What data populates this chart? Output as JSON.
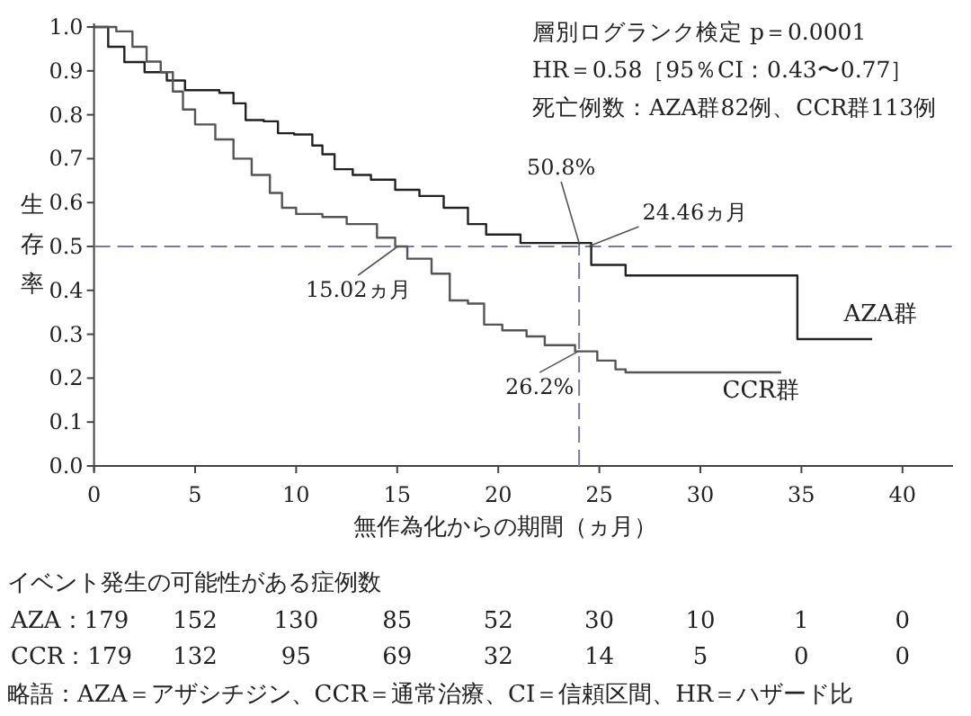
{
  "chart_data": {
    "type": "step",
    "xlabel": "無作為化からの期間（ヵ月）",
    "ylabel": "生存率",
    "xlim": [
      0,
      42.5
    ],
    "ylim": [
      0,
      1
    ],
    "xticks": [
      0,
      5,
      10,
      15,
      20,
      25,
      30,
      35,
      40
    ],
    "yticks": [
      {
        "value": 0,
        "label": "0.0"
      },
      0.1,
      0.2,
      0.3,
      0.4,
      0.5,
      0.6,
      0.7,
      0.8,
      0.9,
      {
        "value": 1,
        "label": "1.0"
      }
    ],
    "series": [
      {
        "name": "AZA群",
        "color": "#222222",
        "x": [
          0,
          0.7,
          1.5,
          2.5,
          3.6,
          4.5,
          6.2,
          6.9,
          7.5,
          8.4,
          9.1,
          9.9,
          10.8,
          11.3,
          11.9,
          12.8,
          13.7,
          14.9,
          16.1,
          17.3,
          18.5,
          19.4,
          21.1,
          24.6,
          26.3,
          34.8,
          38.5
        ],
        "values": [
          1,
          0.955,
          0.92,
          0.897,
          0.878,
          0.856,
          0.85,
          0.826,
          0.788,
          0.785,
          0.758,
          0.755,
          0.73,
          0.71,
          0.676,
          0.663,
          0.652,
          0.629,
          0.615,
          0.588,
          0.551,
          0.527,
          0.508,
          0.458,
          0.434,
          0.289,
          0.289
        ]
      },
      {
        "name": "CCR群",
        "color": "#555555",
        "x": [
          0,
          1.1,
          1.9,
          2.6,
          3.3,
          3.9,
          4.4,
          5.0,
          6.0,
          6.9,
          7.8,
          8.7,
          9.3,
          10.0,
          11.3,
          12.5,
          14.0,
          14.9,
          15.5,
          16.7,
          17.6,
          18.5,
          19.3,
          20.2,
          21.4,
          22.3,
          23.8,
          24.9,
          25.8,
          26.3,
          34.0
        ],
        "values": [
          1,
          0.99,
          0.955,
          0.921,
          0.897,
          0.853,
          0.812,
          0.778,
          0.744,
          0.7,
          0.663,
          0.622,
          0.588,
          0.574,
          0.567,
          0.551,
          0.52,
          0.5,
          0.472,
          0.438,
          0.377,
          0.37,
          0.322,
          0.309,
          0.295,
          0.275,
          0.261,
          0.24,
          0.22,
          0.213,
          0.213
        ]
      }
    ],
    "ref_lines": [
      {
        "axis": "y",
        "value": 0.5,
        "color": "#7a7aa0",
        "line_style": "dashed"
      },
      {
        "axis": "x",
        "value": 24,
        "color": "#7a7aa0",
        "line_style": "dashed"
      }
    ],
    "annotations": [
      {
        "text": "50.8%",
        "x": 24,
        "y": 0.508
      },
      {
        "text": "24.46ヵ月",
        "x": 24.46,
        "y": 0.5
      },
      {
        "text": "15.02ヵ月",
        "x": 15.02,
        "y": 0.5
      },
      {
        "text": "26.2%",
        "x": 24,
        "y": 0.262
      },
      "層別ログランク検定 p＝0.0001",
      "HR＝0.58［95％CI：0.43〜0.77］",
      "死亡例数：AZA群82例、CCR群113例",
      "イベント発生の可能性がある症例数",
      "AZA：179",
      "152",
      "130",
      "85",
      "52",
      "30",
      "10",
      "1",
      "0",
      "CCR：179",
      "132",
      "95",
      "69",
      "32",
      "14",
      "5",
      "0",
      "0",
      "略語：AZA＝アザシチジン、CCR＝通常治療、CI＝信頼区間、HR＝ハザード比"
    ]
  }
}
